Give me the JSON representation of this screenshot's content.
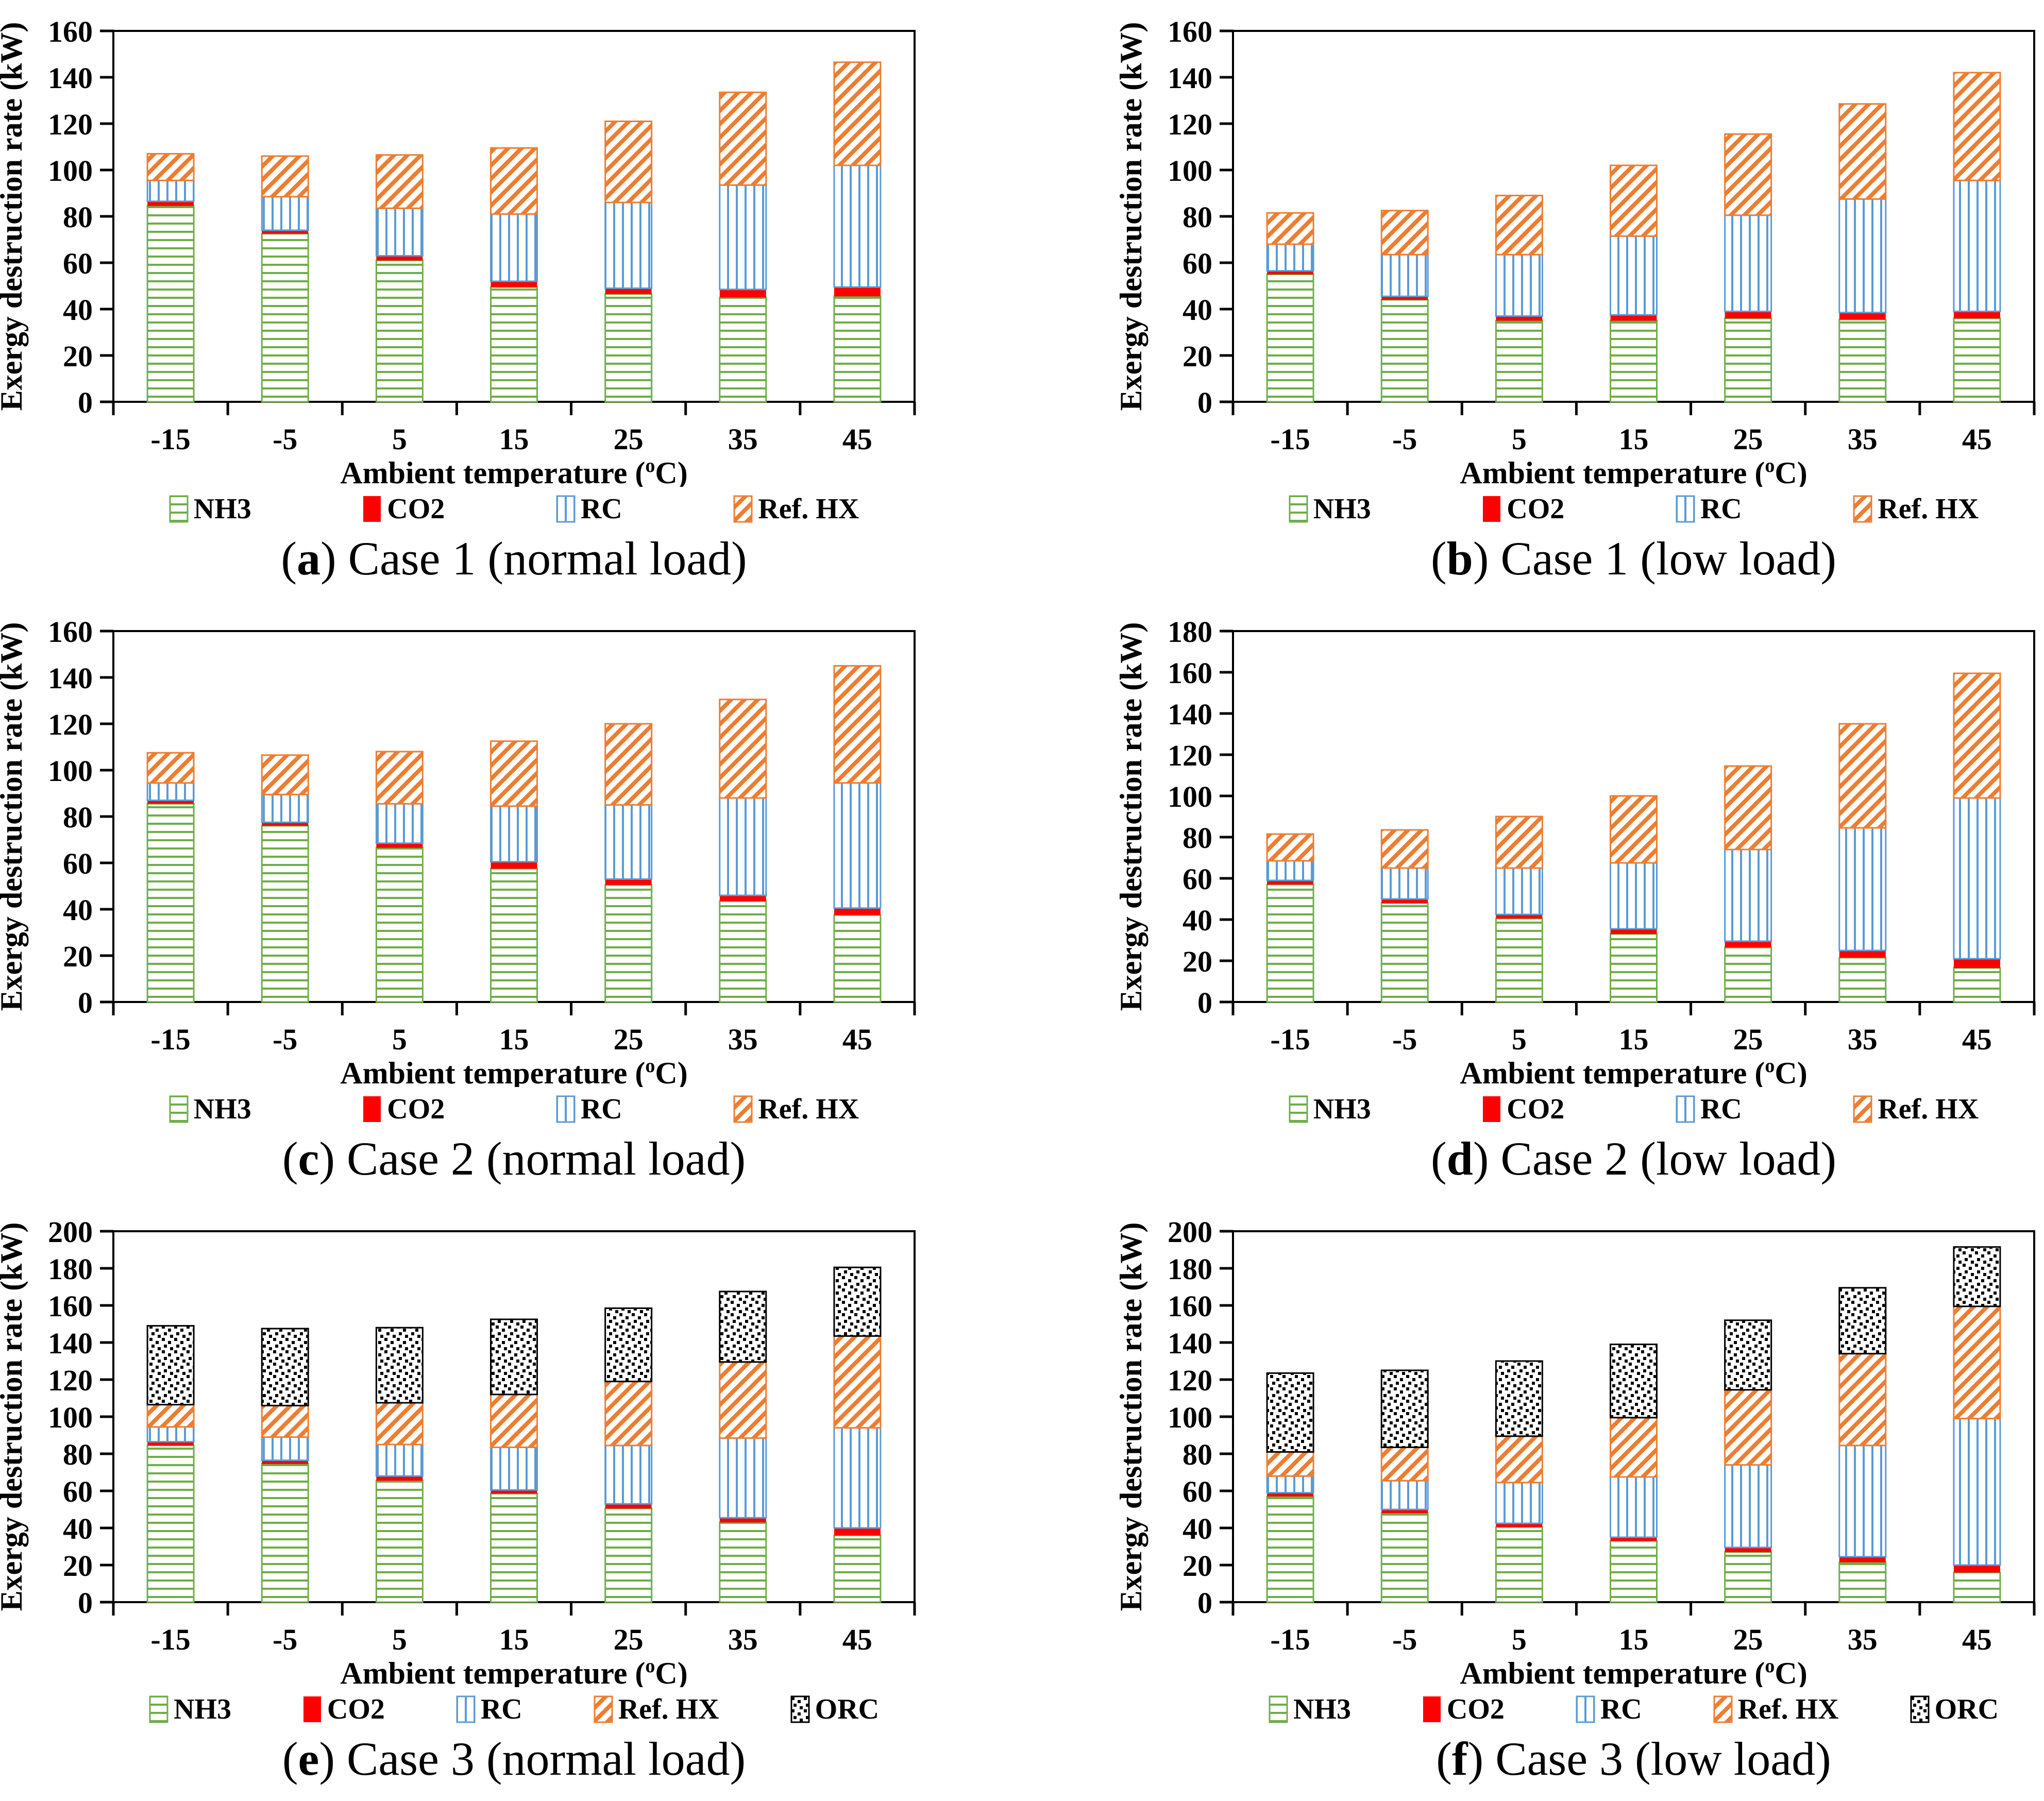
{
  "figure": {
    "background": "#ffffff",
    "axis_color": "#000000",
    "text_color": "#000000"
  },
  "series_styles": {
    "NH3": {
      "color": "#70ad47",
      "pattern": "h-lines"
    },
    "CO2": {
      "color": "#ff0000",
      "pattern": "solid"
    },
    "RC": {
      "color": "#5b9bd5",
      "pattern": "v-lines"
    },
    "Ref. HX": {
      "color": "#ed7d31",
      "pattern": "diag-lines"
    },
    "ORC": {
      "color": "#000000",
      "pattern": "dots"
    }
  },
  "chart_data": [
    {
      "panel": "a",
      "caption": {
        "letter": "a",
        "text": "Case 1 (normal load)"
      },
      "type": "bar",
      "stacked": true,
      "grid": false,
      "legend_position": "bottom",
      "xlabel": {
        "pre": "Ambient temperature (",
        "sup": "o",
        "post": "C)"
      },
      "ylabel": "Exergy destruction rate (kW)",
      "ylim": [
        0,
        160
      ],
      "ytick_step": 20,
      "categories": [
        "-15",
        "-5",
        "5",
        "15",
        "25",
        "35",
        "45"
      ],
      "series": [
        {
          "name": "NH3",
          "color": "#70ad47",
          "pattern": "h-lines",
          "values": [
            84.5,
            72.5,
            61,
            49.5,
            46.5,
            45,
            45.5
          ]
        },
        {
          "name": "CO2",
          "color": "#ff0000",
          "pattern": "solid",
          "values": [
            2,
            1.5,
            2,
            2.5,
            2.5,
            3.5,
            4
          ]
        },
        {
          "name": "RC",
          "color": "#5b9bd5",
          "pattern": "v-lines",
          "values": [
            9,
            14.5,
            20.5,
            29,
            37,
            45,
            52.5
          ]
        },
        {
          "name": "Ref. HX",
          "color": "#ed7d31",
          "pattern": "diag-lines",
          "values": [
            11.5,
            17.5,
            23,
            28.5,
            35,
            40,
            44.5
          ]
        }
      ]
    },
    {
      "panel": "b",
      "caption": {
        "letter": "b",
        "text": "Case 1 (low load)"
      },
      "type": "bar",
      "stacked": true,
      "grid": false,
      "legend_position": "bottom",
      "xlabel": {
        "pre": "Ambient temperature (",
        "sup": "o",
        "post": "C)"
      },
      "ylabel": "Exergy destruction rate (kW)",
      "ylim": [
        0,
        160
      ],
      "ytick_step": 20,
      "categories": [
        "-15",
        "-5",
        "5",
        "15",
        "25",
        "35",
        "45"
      ],
      "series": [
        {
          "name": "NH3",
          "color": "#70ad47",
          "pattern": "h-lines",
          "values": [
            55,
            44,
            35,
            35,
            36,
            35.5,
            36
          ]
        },
        {
          "name": "CO2",
          "color": "#ff0000",
          "pattern": "solid",
          "values": [
            1.5,
            1.5,
            2,
            2.5,
            3,
            3,
            3
          ]
        },
        {
          "name": "RC",
          "color": "#5b9bd5",
          "pattern": "v-lines",
          "values": [
            11.5,
            18,
            26.5,
            34,
            41.5,
            49,
            56.5
          ]
        },
        {
          "name": "Ref. HX",
          "color": "#ed7d31",
          "pattern": "diag-lines",
          "values": [
            13.5,
            19,
            25.5,
            30.5,
            35,
            41,
            46.5
          ]
        }
      ]
    },
    {
      "panel": "c",
      "caption": {
        "letter": "c",
        "text": "Case 2 (normal load)"
      },
      "type": "bar",
      "stacked": true,
      "grid": false,
      "legend_position": "bottom",
      "xlabel": {
        "pre": "Ambient temperature (",
        "sup": "o",
        "post": "C)"
      },
      "ylabel": "Exergy destruction rate (kW)",
      "ylim": [
        0,
        160
      ],
      "ytick_step": 20,
      "categories": [
        "-15",
        "-5",
        "5",
        "15",
        "25",
        "35",
        "45"
      ],
      "series": [
        {
          "name": "NH3",
          "color": "#70ad47",
          "pattern": "h-lines",
          "values": [
            85.5,
            76,
            66.5,
            57.5,
            50.5,
            43.5,
            37.5
          ]
        },
        {
          "name": "CO2",
          "color": "#ff0000",
          "pattern": "solid",
          "values": [
            1.5,
            1.5,
            2,
            3,
            2.5,
            2.5,
            3
          ]
        },
        {
          "name": "RC",
          "color": "#5b9bd5",
          "pattern": "v-lines",
          "values": [
            7.5,
            12,
            17,
            24,
            32,
            42,
            54
          ]
        },
        {
          "name": "Ref. HX",
          "color": "#ed7d31",
          "pattern": "diag-lines",
          "values": [
            13,
            17,
            22.5,
            28,
            35,
            42.5,
            50.5
          ]
        }
      ]
    },
    {
      "panel": "d",
      "caption": {
        "letter": "d",
        "text": "Case 2 (low load)"
      },
      "type": "bar",
      "stacked": true,
      "grid": false,
      "legend_position": "bottom",
      "xlabel": {
        "pre": "Ambient temperature (",
        "sup": "o",
        "post": "C)"
      },
      "ylabel": "Exergy destruction rate (kW)",
      "ylim": [
        0,
        180
      ],
      "ytick_step": 20,
      "categories": [
        "-15",
        "-5",
        "5",
        "15",
        "25",
        "35",
        "45"
      ],
      "series": [
        {
          "name": "NH3",
          "color": "#70ad47",
          "pattern": "h-lines",
          "values": [
            57,
            48,
            40.5,
            33,
            26.5,
            21.5,
            16.5
          ]
        },
        {
          "name": "CO2",
          "color": "#ff0000",
          "pattern": "solid",
          "values": [
            2,
            2,
            2,
            2.5,
            3,
            3.5,
            4.5
          ]
        },
        {
          "name": "RC",
          "color": "#5b9bd5",
          "pattern": "v-lines",
          "values": [
            9.5,
            15,
            22.5,
            32,
            44.5,
            59.5,
            78
          ]
        },
        {
          "name": "Ref. HX",
          "color": "#ed7d31",
          "pattern": "diag-lines",
          "values": [
            13,
            18.5,
            25,
            32.5,
            40.5,
            50.5,
            60.5
          ]
        }
      ]
    },
    {
      "panel": "e",
      "caption": {
        "letter": "e",
        "text": "Case 3 (normal load)"
      },
      "type": "bar",
      "stacked": true,
      "grid": false,
      "legend_position": "bottom",
      "xlabel": {
        "pre": "Ambient temperature (",
        "sup": "o",
        "post": "C)"
      },
      "ylabel": "Exergy destruction rate (kW)",
      "ylim": [
        0,
        200
      ],
      "ytick_step": 20,
      "categories": [
        "-15",
        "-5",
        "5",
        "15",
        "25",
        "35",
        "45"
      ],
      "series": [
        {
          "name": "NH3",
          "color": "#70ad47",
          "pattern": "h-lines",
          "values": [
            84.5,
            74.5,
            65.5,
            58.5,
            50.5,
            43,
            36
          ]
        },
        {
          "name": "CO2",
          "color": "#ff0000",
          "pattern": "solid",
          "values": [
            2,
            2,
            2.5,
            2,
            2.5,
            2.5,
            4
          ]
        },
        {
          "name": "RC",
          "color": "#5b9bd5",
          "pattern": "v-lines",
          "values": [
            8,
            12.5,
            17,
            23,
            31.5,
            43,
            54
          ]
        },
        {
          "name": "Ref. HX",
          "color": "#ed7d31",
          "pattern": "diag-lines",
          "values": [
            12,
            17,
            22.5,
            28.5,
            34.5,
            41,
            49.5
          ]
        },
        {
          "name": "ORC",
          "color": "#000000",
          "pattern": "dots",
          "values": [
            42.5,
            41.5,
            40.5,
            40.5,
            39.5,
            38,
            37
          ]
        }
      ]
    },
    {
      "panel": "f",
      "caption": {
        "letter": "f",
        "text": "Case 3 (low load)"
      },
      "type": "bar",
      "stacked": true,
      "grid": false,
      "legend_position": "bottom",
      "xlabel": {
        "pre": "Ambient temperature (",
        "sup": "o",
        "post": "C)"
      },
      "ylabel": "Exergy destruction rate (kW)",
      "ylim": [
        0,
        200
      ],
      "ytick_step": 20,
      "categories": [
        "-15",
        "-5",
        "5",
        "15",
        "25",
        "35",
        "45"
      ],
      "series": [
        {
          "name": "NH3",
          "color": "#70ad47",
          "pattern": "h-lines",
          "values": [
            57,
            48,
            40.5,
            33,
            27,
            21.5,
            16
          ]
        },
        {
          "name": "CO2",
          "color": "#ff0000",
          "pattern": "solid",
          "values": [
            2,
            2,
            2,
            2,
            2.5,
            3,
            4
          ]
        },
        {
          "name": "RC",
          "color": "#5b9bd5",
          "pattern": "v-lines",
          "values": [
            9,
            15.5,
            22,
            32.5,
            44.5,
            60,
            79
          ]
        },
        {
          "name": "Ref. HX",
          "color": "#ed7d31",
          "pattern": "diag-lines",
          "values": [
            13,
            18,
            25,
            32,
            40.5,
            49.5,
            60.5
          ]
        },
        {
          "name": "ORC",
          "color": "#000000",
          "pattern": "dots",
          "values": [
            42.5,
            41.5,
            40.5,
            39.5,
            37.5,
            35.5,
            32
          ]
        }
      ]
    }
  ]
}
